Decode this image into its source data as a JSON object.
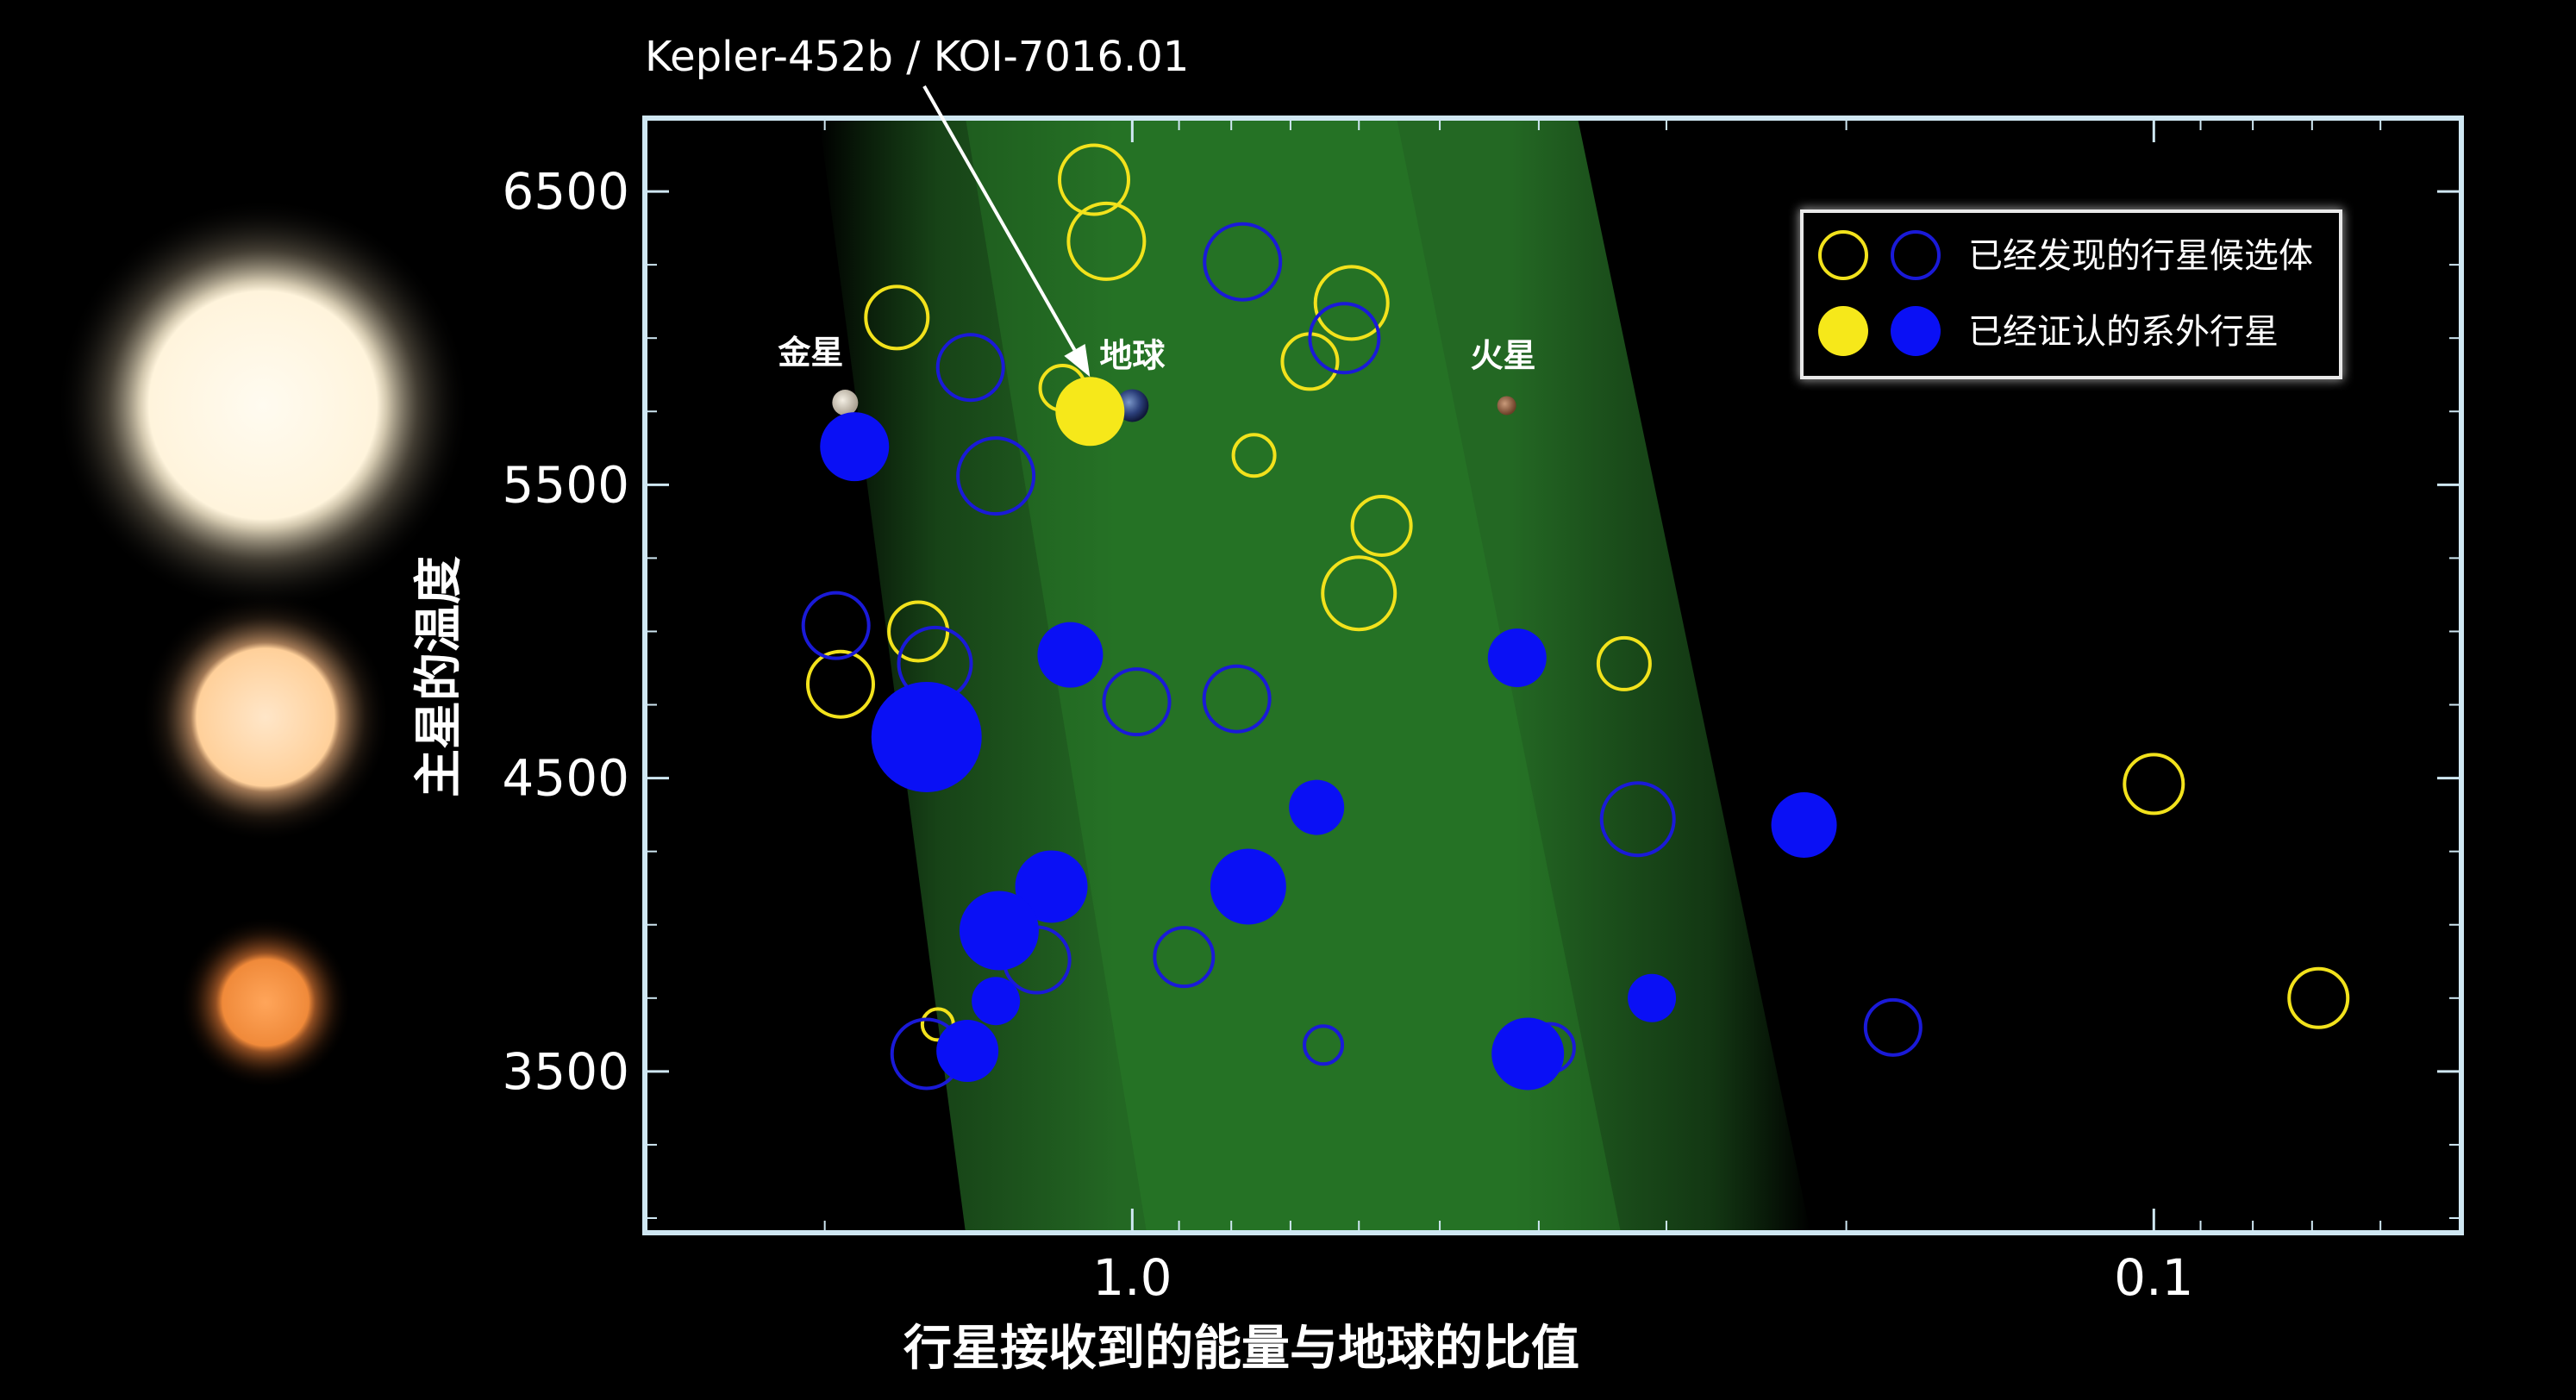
{
  "chart_data": {
    "type": "scatter",
    "title": "",
    "xlabel": "行星接收到的能量与地球的比值",
    "ylabel": "主星的温度",
    "x_scale": "log",
    "x_direction": "decreasing",
    "xlim": [
      3.0,
      0.05
    ],
    "ylim": [
      2950,
      6750
    ],
    "x_ticks": [
      1.0,
      0.1
    ],
    "x_tick_labels": [
      "1.0",
      "0.1"
    ],
    "y_ticks": [
      3500,
      4500,
      5500,
      6500
    ],
    "y_tick_labels": [
      "3500",
      "4500",
      "5500",
      "6500"
    ],
    "habitable_zone_band": true,
    "grid": false,
    "legend_position": "top-right",
    "legend": [
      {
        "label": "已经发现的行星候选体",
        "style": "open",
        "colors": [
          "#f2e21c",
          "#1a1ad8"
        ]
      },
      {
        "label": "已经证认的系外行星",
        "style": "filled",
        "colors": [
          "#f2e21c",
          "#0a10f5"
        ]
      }
    ],
    "annotations": [
      {
        "text": "Kepler-452b / KOI-7016.01",
        "target_x": 1.1,
        "target_y": 5750,
        "arrow": true
      }
    ],
    "solar_system": [
      {
        "name": "金星",
        "x": 1.91,
        "y": 5780
      },
      {
        "name": "地球",
        "x": 1.0,
        "y": 5770
      },
      {
        "name": "火星",
        "x": 0.43,
        "y": 5770
      }
    ],
    "series": [
      {
        "name": "已经发现的行星候选体",
        "style": "open",
        "points": [
          {
            "x": 1.09,
            "y": 6540,
            "c": "y",
            "s": 20
          },
          {
            "x": 1.06,
            "y": 6330,
            "c": "y",
            "s": 22
          },
          {
            "x": 1.7,
            "y": 6070,
            "c": "y",
            "s": 18
          },
          {
            "x": 1.17,
            "y": 5830,
            "c": "y",
            "s": 13
          },
          {
            "x": 0.67,
            "y": 5920,
            "c": "y",
            "s": 16
          },
          {
            "x": 0.61,
            "y": 6120,
            "c": "y",
            "s": 21
          },
          {
            "x": 0.76,
            "y": 5600,
            "c": "y",
            "s": 12
          },
          {
            "x": 0.57,
            "y": 5360,
            "c": "y",
            "s": 17
          },
          {
            "x": 0.6,
            "y": 5130,
            "c": "y",
            "s": 21
          },
          {
            "x": 1.62,
            "y": 5000,
            "c": "y",
            "s": 17
          },
          {
            "x": 1.93,
            "y": 4820,
            "c": "y",
            "s": 19
          },
          {
            "x": 0.33,
            "y": 4890,
            "c": "y",
            "s": 15
          },
          {
            "x": 0.1,
            "y": 4480,
            "c": "y",
            "s": 17
          },
          {
            "x": 1.55,
            "y": 3660,
            "c": "y",
            "s": 9
          },
          {
            "x": 0.069,
            "y": 3750,
            "c": "y",
            "s": 17
          },
          {
            "x": 0.78,
            "y": 6260,
            "c": "b",
            "s": 22
          },
          {
            "x": 0.62,
            "y": 6000,
            "c": "b",
            "s": 20
          },
          {
            "x": 1.44,
            "y": 5900,
            "c": "b",
            "s": 19
          },
          {
            "x": 1.36,
            "y": 5530,
            "c": "b",
            "s": 22
          },
          {
            "x": 1.95,
            "y": 5020,
            "c": "b",
            "s": 19
          },
          {
            "x": 1.56,
            "y": 4890,
            "c": "b",
            "s": 21
          },
          {
            "x": 0.99,
            "y": 4760,
            "c": "b",
            "s": 19
          },
          {
            "x": 0.79,
            "y": 4770,
            "c": "b",
            "s": 19
          },
          {
            "x": 0.32,
            "y": 4360,
            "c": "b",
            "s": 21
          },
          {
            "x": 0.89,
            "y": 3890,
            "c": "b",
            "s": 17
          },
          {
            "x": 1.24,
            "y": 3880,
            "c": "b",
            "s": 19
          },
          {
            "x": 0.18,
            "y": 3650,
            "c": "b",
            "s": 16
          },
          {
            "x": 0.65,
            "y": 3590,
            "c": "b",
            "s": 11
          },
          {
            "x": 0.39,
            "y": 3580,
            "c": "b",
            "s": 14
          },
          {
            "x": 1.59,
            "y": 3560,
            "c": "b",
            "s": 20
          }
        ]
      },
      {
        "name": "已经证认的系外行星",
        "style": "filled",
        "points": [
          {
            "x": 1.1,
            "y": 5750,
            "c": "y",
            "s": 20
          },
          {
            "x": 1.87,
            "y": 5630,
            "c": "b",
            "s": 20
          },
          {
            "x": 1.59,
            "y": 4640,
            "c": "b",
            "s": 32
          },
          {
            "x": 1.15,
            "y": 4920,
            "c": "b",
            "s": 19
          },
          {
            "x": 0.42,
            "y": 4910,
            "c": "b",
            "s": 17
          },
          {
            "x": 0.66,
            "y": 4400,
            "c": "b",
            "s": 16
          },
          {
            "x": 0.22,
            "y": 4340,
            "c": "b",
            "s": 19
          },
          {
            "x": 1.2,
            "y": 4130,
            "c": "b",
            "s": 21
          },
          {
            "x": 0.77,
            "y": 4130,
            "c": "b",
            "s": 22
          },
          {
            "x": 1.35,
            "y": 3980,
            "c": "b",
            "s": 23
          },
          {
            "x": 0.31,
            "y": 3750,
            "c": "b",
            "s": 14
          },
          {
            "x": 1.36,
            "y": 3740,
            "c": "b",
            "s": 14
          },
          {
            "x": 1.45,
            "y": 3570,
            "c": "b",
            "s": 18
          },
          {
            "x": 0.41,
            "y": 3560,
            "c": "b",
            "s": 21
          }
        ]
      }
    ]
  }
}
